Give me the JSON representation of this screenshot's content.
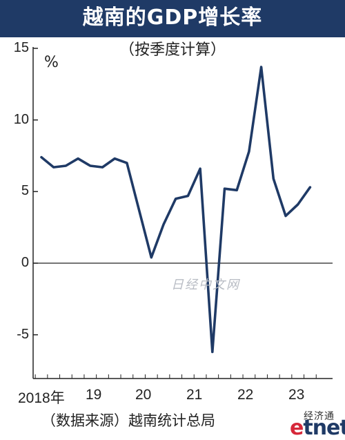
{
  "chart_data": {
    "type": "line",
    "title": "越南的GDP增长率",
    "subtitle": "（按季度计算）",
    "ylabel": "%",
    "ylim": [
      -8,
      15
    ],
    "yticks": [
      15,
      10,
      5,
      0,
      -5
    ],
    "ytick_labels": [
      "15",
      "10",
      "5",
      "0",
      "-5"
    ],
    "x_tick_labels": [
      "2018年",
      "19",
      "20",
      "21",
      "22",
      "23"
    ],
    "x_tick_quarter_index": [
      0,
      4,
      8,
      12,
      16,
      20
    ],
    "quarters": [
      "2018Q1",
      "2018Q2",
      "2018Q3",
      "2018Q4",
      "2019Q1",
      "2019Q2",
      "2019Q3",
      "2019Q4",
      "2020Q1",
      "2020Q2",
      "2020Q3",
      "2020Q4",
      "2021Q1",
      "2021Q2",
      "2021Q3",
      "2021Q4",
      "2022Q1",
      "2022Q2",
      "2022Q3",
      "2022Q4",
      "2023Q1",
      "2023Q2",
      "2023Q3"
    ],
    "values": [
      7.4,
      6.7,
      6.8,
      7.3,
      6.8,
      6.7,
      7.3,
      7.0,
      3.7,
      0.4,
      2.7,
      4.5,
      4.7,
      6.6,
      -6.2,
      5.2,
      5.1,
      7.8,
      13.7,
      5.9,
      3.3,
      4.1,
      5.3
    ],
    "grid": false,
    "zero_line": true,
    "line_color": "#1f3a66"
  },
  "source": "（数据来源）越南统计总局",
  "watermark": "日经中文网",
  "logo": {
    "top": "经济通",
    "e": "e",
    "rest": "tnet"
  }
}
